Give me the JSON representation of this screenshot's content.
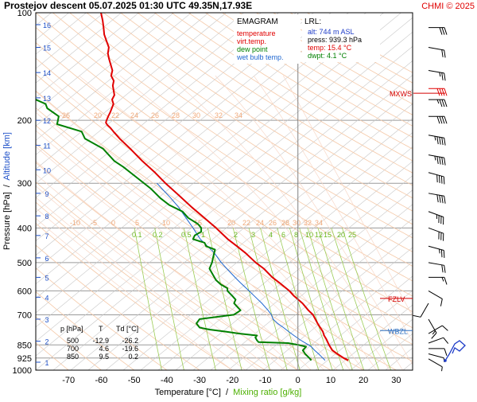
{
  "header": {
    "title": "Prostejov   descent   05.07.2025 01:30 UTC  49.35N,17.93E",
    "credit": "CHMI © 2025"
  },
  "chart_data": {
    "type": "line",
    "xlabel": "Temperature [°C]",
    "xlabel_sep": "/",
    "xlabel2": "Mixing ratio [g/kg]",
    "ylabel": "Pressure [hPa]",
    "ylabel_sep": "/",
    "ylabel2": "Altitude [km]",
    "xlim": [
      -80,
      35
    ],
    "x_ticks": [
      -70,
      -60,
      -50,
      -40,
      -30,
      -20,
      -10,
      0,
      10,
      20,
      30
    ],
    "y_log_scale": true,
    "pressure_ticks": [
      100,
      200,
      300,
      400,
      500,
      600,
      700,
      850,
      925,
      1000
    ],
    "altitude_ticks": [
      {
        "km": "1",
        "p": 950
      },
      {
        "km": "2",
        "p": 830
      },
      {
        "km": "3",
        "p": 720
      },
      {
        "km": "4",
        "p": 625
      },
      {
        "km": "5",
        "p": 550
      },
      {
        "km": "6",
        "p": 485
      },
      {
        "km": "7",
        "p": 420
      },
      {
        "km": "8",
        "p": 370
      },
      {
        "km": "9",
        "p": 320
      },
      {
        "km": "10",
        "p": 275
      },
      {
        "km": "11",
        "p": 235
      },
      {
        "km": "12",
        "p": 200
      },
      {
        "km": "13",
        "p": 173
      },
      {
        "km": "14",
        "p": 147
      },
      {
        "km": "15",
        "p": 125
      },
      {
        "km": "16",
        "p": 108
      }
    ],
    "legend": {
      "title": "EMAGRAM",
      "items": [
        {
          "label": "temperature",
          "color": "#ff0000"
        },
        {
          "label": "virt.temp.",
          "color": "#ff0000"
        },
        {
          "label": "dew point",
          "color": "#008000"
        },
        {
          "label": "wet bulb temp.",
          "color": "#1e66d0"
        }
      ]
    },
    "lrl": {
      "title": "LRL:",
      "alt": "alt: 744 m ASL",
      "press": "press: 939.3 hPa",
      "temp": "temp: 15.4 °C",
      "dwpt": "dwpt: 4.1 °C"
    },
    "table": {
      "headers": [
        "p [hPa]",
        "T",
        "Td [°C]"
      ],
      "rows": [
        [
          "500",
          "-12.9",
          "-26.2"
        ],
        [
          "700",
          "4.6",
          "-19.6"
        ],
        [
          "850",
          "9.5",
          "0.2"
        ]
      ]
    },
    "markers": [
      {
        "label": "MXWS",
        "color": "#d40000",
        "p": 168
      },
      {
        "label": "FZLV",
        "color": "#d40000",
        "p": 630
      },
      {
        "label": "WBZL",
        "color": "#3070c0",
        "p": 775
      }
    ],
    "mixing_ratio_labels": [
      "0.1",
      "0.2",
      "0.5",
      "1",
      "2",
      "3",
      "4",
      "6",
      "8",
      "10",
      "12",
      "15",
      "20",
      "25"
    ],
    "mixing_ratio_values": [
      0.1,
      0.2,
      0.5,
      1,
      2,
      3,
      4,
      6,
      8,
      10,
      12,
      15,
      20,
      25
    ],
    "adiabat_labels_upper": [
      "-26",
      "20",
      "22",
      "24",
      "26",
      "28",
      "30",
      "32",
      "34"
    ],
    "adiabat_labels_lower": [
      "-10",
      "-5",
      "0",
      "5",
      "10",
      "15",
      "20",
      "22",
      "24",
      "26",
      "28",
      "30",
      "32",
      "34"
    ],
    "series": [
      {
        "name": "temperature",
        "color": "#e00000",
        "points": [
          [
            939,
            15.4
          ],
          [
            925,
            14
          ],
          [
            900,
            12
          ],
          [
            880,
            10.5
          ],
          [
            850,
            9.5
          ],
          [
            820,
            8.7
          ],
          [
            800,
            8
          ],
          [
            780,
            7.6
          ],
          [
            760,
            6.8
          ],
          [
            740,
            6
          ],
          [
            720,
            5.3
          ],
          [
            700,
            4.6
          ],
          [
            680,
            3.2
          ],
          [
            650,
            1.4
          ],
          [
            620,
            -1.2
          ],
          [
            600,
            -2.6
          ],
          [
            570,
            -5.6
          ],
          [
            550,
            -7.8
          ],
          [
            520,
            -10.4
          ],
          [
            500,
            -12.9
          ],
          [
            470,
            -16
          ],
          [
            450,
            -18.6
          ],
          [
            430,
            -21.4
          ],
          [
            400,
            -25
          ],
          [
            370,
            -29.3
          ],
          [
            350,
            -32.4
          ],
          [
            320,
            -37
          ],
          [
            300,
            -40.4
          ],
          [
            280,
            -43.6
          ],
          [
            260,
            -47.5
          ],
          [
            240,
            -51.2
          ],
          [
            225,
            -54.4
          ],
          [
            215,
            -56.3
          ],
          [
            210,
            -57.2
          ],
          [
            206,
            -58.2
          ],
          [
            203,
            -58.6
          ],
          [
            200,
            -58.4
          ],
          [
            195,
            -57.9
          ],
          [
            190,
            -57.3
          ],
          [
            180,
            -56.3
          ],
          [
            175,
            -56.7
          ],
          [
            170,
            -56
          ],
          [
            160,
            -56.5
          ],
          [
            155,
            -56.2
          ],
          [
            150,
            -57
          ],
          [
            145,
            -56.6
          ],
          [
            140,
            -57.1
          ],
          [
            135,
            -57.6
          ],
          [
            130,
            -58
          ],
          [
            125,
            -57.7
          ],
          [
            120,
            -58.4
          ],
          [
            115,
            -59.1
          ],
          [
            110,
            -59.3
          ],
          [
            105,
            -59.6
          ],
          [
            100,
            -60.1
          ]
        ]
      },
      {
        "name": "dew point",
        "color": "#008000",
        "points": [
          [
            939,
            4.1
          ],
          [
            925,
            3.5
          ],
          [
            900,
            2.2
          ],
          [
            880,
            1.5
          ],
          [
            860,
            2.5
          ],
          [
            850,
            0.2
          ],
          [
            840,
            -3
          ],
          [
            835,
            -12
          ],
          [
            825,
            -12.5
          ],
          [
            810,
            -13
          ],
          [
            800,
            -12.5
          ],
          [
            790,
            -18
          ],
          [
            780,
            -22
          ],
          [
            770,
            -27
          ],
          [
            760,
            -30
          ],
          [
            740,
            -31
          ],
          [
            720,
            -30
          ],
          [
            700,
            -19.6
          ],
          [
            690,
            -18.5
          ],
          [
            680,
            -17.5
          ],
          [
            665,
            -18.5
          ],
          [
            650,
            -19.5
          ],
          [
            635,
            -19
          ],
          [
            620,
            -20
          ],
          [
            600,
            -21.5
          ],
          [
            590,
            -21.5
          ],
          [
            575,
            -23.6
          ],
          [
            560,
            -25
          ],
          [
            540,
            -26
          ],
          [
            520,
            -27
          ],
          [
            500,
            -26.2
          ],
          [
            480,
            -25.8
          ],
          [
            460,
            -25.3
          ],
          [
            450,
            -28
          ],
          [
            440,
            -28.5
          ],
          [
            430,
            -32
          ],
          [
            420,
            -31.5
          ],
          [
            410,
            -29.5
          ],
          [
            400,
            -29.5
          ],
          [
            390,
            -30.5
          ],
          [
            375,
            -33.5
          ],
          [
            360,
            -35.2
          ],
          [
            345,
            -39.3
          ],
          [
            330,
            -42
          ],
          [
            310,
            -45
          ],
          [
            290,
            -49
          ],
          [
            270,
            -53.3
          ],
          [
            260,
            -56
          ],
          [
            240,
            -59.5
          ],
          [
            225,
            -65
          ],
          [
            215,
            -66
          ],
          [
            205,
            -73.5
          ],
          [
            195,
            -73
          ],
          [
            185,
            -76.5
          ],
          [
            180,
            -77
          ],
          [
            175,
            -80
          ]
        ]
      },
      {
        "name": "wet bulb temp.",
        "color": "#1e66d0",
        "points": [
          [
            939,
            8.3
          ],
          [
            925,
            7.6
          ],
          [
            900,
            6.3
          ],
          [
            880,
            5.1
          ],
          [
            860,
            4.1
          ],
          [
            850,
            3.3
          ],
          [
            825,
            0.9
          ],
          [
            800,
            -1.2
          ],
          [
            780,
            -2.8
          ],
          [
            760,
            -4.4
          ],
          [
            740,
            -6.2
          ],
          [
            720,
            -7.6
          ],
          [
            700,
            -8.1
          ],
          [
            680,
            -9.1
          ],
          [
            650,
            -11
          ],
          [
            620,
            -13.3
          ],
          [
            600,
            -14.9
          ],
          [
            570,
            -17.5
          ],
          [
            550,
            -19.2
          ],
          [
            520,
            -21.7
          ],
          [
            500,
            -23.4
          ],
          [
            470,
            -25.5
          ],
          [
            450,
            -27.6
          ],
          [
            430,
            -29.8
          ],
          [
            400,
            -32
          ],
          [
            370,
            -34.6
          ],
          [
            350,
            -36.4
          ],
          [
            330,
            -38.8
          ],
          [
            310,
            -41.6
          ],
          [
            300,
            -43
          ]
        ]
      }
    ],
    "wind_barbs": [
      {
        "p": 930,
        "dir": 300,
        "kt": 8
      },
      {
        "p": 900,
        "dir": 285,
        "kt": 8
      },
      {
        "p": 870,
        "dir": 270,
        "kt": 10
      },
      {
        "p": 840,
        "dir": 250,
        "kt": 10
      },
      {
        "p": 790,
        "dir": 240,
        "kt": 10
      },
      {
        "p": 720,
        "dir": 330,
        "kt": 15
      },
      {
        "p": 650,
        "dir": 30,
        "kt": 10
      },
      {
        "p": 600,
        "dir": 300,
        "kt": 10
      },
      {
        "p": 550,
        "dir": 270,
        "kt": 15
      },
      {
        "p": 500,
        "dir": 280,
        "kt": 20
      },
      {
        "p": 450,
        "dir": 285,
        "kt": 25
      },
      {
        "p": 400,
        "dir": 290,
        "kt": 30
      },
      {
        "p": 360,
        "dir": 290,
        "kt": 35
      },
      {
        "p": 320,
        "dir": 280,
        "kt": 40
      },
      {
        "p": 280,
        "dir": 285,
        "kt": 40
      },
      {
        "p": 250,
        "dir": 280,
        "kt": 45
      },
      {
        "p": 220,
        "dir": 280,
        "kt": 45
      },
      {
        "p": 195,
        "dir": 270,
        "kt": 40
      },
      {
        "p": 175,
        "dir": 270,
        "kt": 35
      },
      {
        "p": 163,
        "dir": 270,
        "kt": 40,
        "highlight": true
      },
      {
        "p": 145,
        "dir": 280,
        "kt": 25
      },
      {
        "p": 125,
        "dir": 280,
        "kt": 20
      },
      {
        "p": 110,
        "dir": 270,
        "kt": 30
      }
    ],
    "hodograph_color": "#1e3cc8"
  }
}
